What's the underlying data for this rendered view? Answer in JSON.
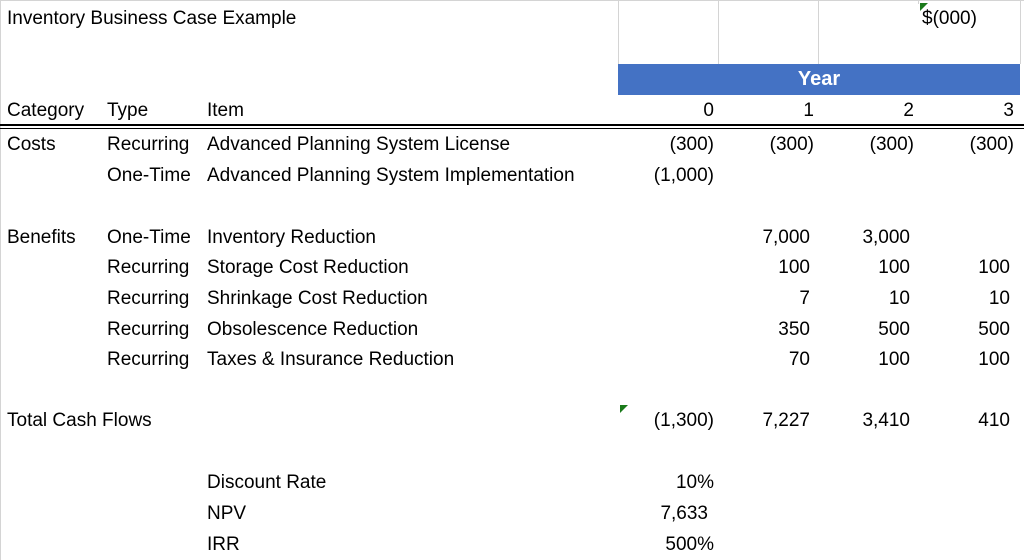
{
  "sheet": {
    "title": "Inventory Business Case Example",
    "units": "$(000)",
    "year_header": "Year",
    "columns": {
      "category": "Category",
      "type": "Type",
      "item": "Item",
      "years": [
        "0",
        "1",
        "2",
        "3"
      ]
    },
    "rows": [
      {
        "category": "Costs",
        "type": "Recurring",
        "item": "Advanced Planning System License",
        "values": [
          "(300)",
          "(300)",
          "(300)",
          "(300)"
        ]
      },
      {
        "category": "",
        "type": "One-Time",
        "item": "Advanced Planning System Implementation",
        "values": [
          "(1,000)",
          "",
          "",
          ""
        ]
      },
      {
        "category": "Benefits",
        "type": "One-Time",
        "item": "Inventory Reduction",
        "values": [
          "",
          "7,000",
          "3,000",
          ""
        ]
      },
      {
        "category": "",
        "type": "Recurring",
        "item": "Storage Cost Reduction",
        "values": [
          "",
          "100",
          "100",
          "100"
        ]
      },
      {
        "category": "",
        "type": "Recurring",
        "item": "Shrinkage Cost Reduction",
        "values": [
          "",
          "7",
          "10",
          "10"
        ]
      },
      {
        "category": "",
        "type": "Recurring",
        "item": "Obsolescence Reduction",
        "values": [
          "",
          "350",
          "500",
          "500"
        ]
      },
      {
        "category": "",
        "type": "Recurring",
        "item": "Taxes & Insurance Reduction",
        "values": [
          "",
          "70",
          "100",
          "100"
        ]
      }
    ],
    "total": {
      "label": "Total Cash Flows",
      "values": [
        "(1,300)",
        "7,227",
        "3,410",
        "410"
      ]
    },
    "metrics": [
      {
        "label": "Discount Rate",
        "value": "10%"
      },
      {
        "label": "NPV",
        "value": "7,633"
      },
      {
        "label": "IRR",
        "value": "500%"
      }
    ],
    "comment_indicator_color": "#1a7a1a",
    "header_fill_color": "#4472c4"
  }
}
